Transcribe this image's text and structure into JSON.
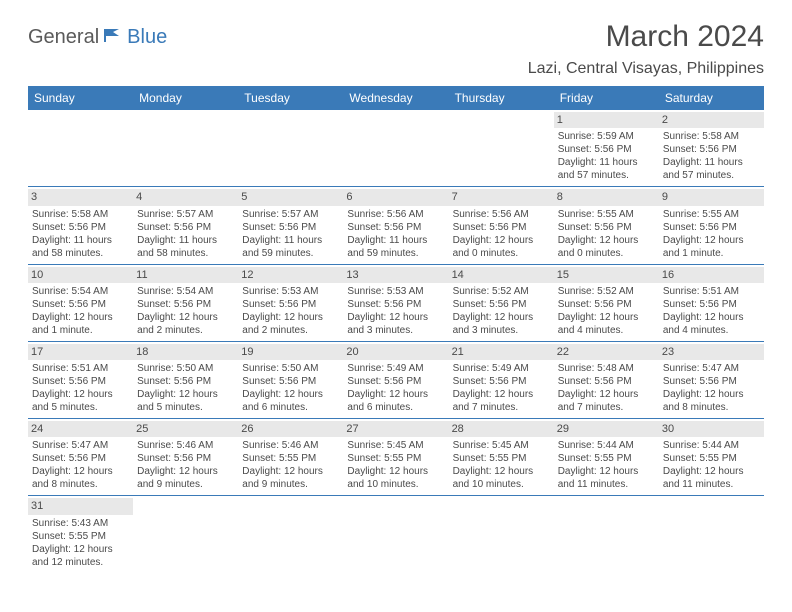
{
  "logo": {
    "part1": "General",
    "part2": "Blue"
  },
  "title": "March 2024",
  "location": "Lazi, Central Visayas, Philippines",
  "colors": {
    "header_bg": "#3a7ab8",
    "daynum_bg": "#e8e8e8",
    "text": "#4a4a4a",
    "border": "#3a7ab8"
  },
  "day_headers": [
    "Sunday",
    "Monday",
    "Tuesday",
    "Wednesday",
    "Thursday",
    "Friday",
    "Saturday"
  ],
  "weeks": [
    [
      null,
      null,
      null,
      null,
      null,
      {
        "n": "1",
        "sr": "Sunrise: 5:59 AM",
        "ss": "Sunset: 5:56 PM",
        "d1": "Daylight: 11 hours",
        "d2": "and 57 minutes."
      },
      {
        "n": "2",
        "sr": "Sunrise: 5:58 AM",
        "ss": "Sunset: 5:56 PM",
        "d1": "Daylight: 11 hours",
        "d2": "and 57 minutes."
      }
    ],
    [
      {
        "n": "3",
        "sr": "Sunrise: 5:58 AM",
        "ss": "Sunset: 5:56 PM",
        "d1": "Daylight: 11 hours",
        "d2": "and 58 minutes."
      },
      {
        "n": "4",
        "sr": "Sunrise: 5:57 AM",
        "ss": "Sunset: 5:56 PM",
        "d1": "Daylight: 11 hours",
        "d2": "and 58 minutes."
      },
      {
        "n": "5",
        "sr": "Sunrise: 5:57 AM",
        "ss": "Sunset: 5:56 PM",
        "d1": "Daylight: 11 hours",
        "d2": "and 59 minutes."
      },
      {
        "n": "6",
        "sr": "Sunrise: 5:56 AM",
        "ss": "Sunset: 5:56 PM",
        "d1": "Daylight: 11 hours",
        "d2": "and 59 minutes."
      },
      {
        "n": "7",
        "sr": "Sunrise: 5:56 AM",
        "ss": "Sunset: 5:56 PM",
        "d1": "Daylight: 12 hours",
        "d2": "and 0 minutes."
      },
      {
        "n": "8",
        "sr": "Sunrise: 5:55 AM",
        "ss": "Sunset: 5:56 PM",
        "d1": "Daylight: 12 hours",
        "d2": "and 0 minutes."
      },
      {
        "n": "9",
        "sr": "Sunrise: 5:55 AM",
        "ss": "Sunset: 5:56 PM",
        "d1": "Daylight: 12 hours",
        "d2": "and 1 minute."
      }
    ],
    [
      {
        "n": "10",
        "sr": "Sunrise: 5:54 AM",
        "ss": "Sunset: 5:56 PM",
        "d1": "Daylight: 12 hours",
        "d2": "and 1 minute."
      },
      {
        "n": "11",
        "sr": "Sunrise: 5:54 AM",
        "ss": "Sunset: 5:56 PM",
        "d1": "Daylight: 12 hours",
        "d2": "and 2 minutes."
      },
      {
        "n": "12",
        "sr": "Sunrise: 5:53 AM",
        "ss": "Sunset: 5:56 PM",
        "d1": "Daylight: 12 hours",
        "d2": "and 2 minutes."
      },
      {
        "n": "13",
        "sr": "Sunrise: 5:53 AM",
        "ss": "Sunset: 5:56 PM",
        "d1": "Daylight: 12 hours",
        "d2": "and 3 minutes."
      },
      {
        "n": "14",
        "sr": "Sunrise: 5:52 AM",
        "ss": "Sunset: 5:56 PM",
        "d1": "Daylight: 12 hours",
        "d2": "and 3 minutes."
      },
      {
        "n": "15",
        "sr": "Sunrise: 5:52 AM",
        "ss": "Sunset: 5:56 PM",
        "d1": "Daylight: 12 hours",
        "d2": "and 4 minutes."
      },
      {
        "n": "16",
        "sr": "Sunrise: 5:51 AM",
        "ss": "Sunset: 5:56 PM",
        "d1": "Daylight: 12 hours",
        "d2": "and 4 minutes."
      }
    ],
    [
      {
        "n": "17",
        "sr": "Sunrise: 5:51 AM",
        "ss": "Sunset: 5:56 PM",
        "d1": "Daylight: 12 hours",
        "d2": "and 5 minutes."
      },
      {
        "n": "18",
        "sr": "Sunrise: 5:50 AM",
        "ss": "Sunset: 5:56 PM",
        "d1": "Daylight: 12 hours",
        "d2": "and 5 minutes."
      },
      {
        "n": "19",
        "sr": "Sunrise: 5:50 AM",
        "ss": "Sunset: 5:56 PM",
        "d1": "Daylight: 12 hours",
        "d2": "and 6 minutes."
      },
      {
        "n": "20",
        "sr": "Sunrise: 5:49 AM",
        "ss": "Sunset: 5:56 PM",
        "d1": "Daylight: 12 hours",
        "d2": "and 6 minutes."
      },
      {
        "n": "21",
        "sr": "Sunrise: 5:49 AM",
        "ss": "Sunset: 5:56 PM",
        "d1": "Daylight: 12 hours",
        "d2": "and 7 minutes."
      },
      {
        "n": "22",
        "sr": "Sunrise: 5:48 AM",
        "ss": "Sunset: 5:56 PM",
        "d1": "Daylight: 12 hours",
        "d2": "and 7 minutes."
      },
      {
        "n": "23",
        "sr": "Sunrise: 5:47 AM",
        "ss": "Sunset: 5:56 PM",
        "d1": "Daylight: 12 hours",
        "d2": "and 8 minutes."
      }
    ],
    [
      {
        "n": "24",
        "sr": "Sunrise: 5:47 AM",
        "ss": "Sunset: 5:56 PM",
        "d1": "Daylight: 12 hours",
        "d2": "and 8 minutes."
      },
      {
        "n": "25",
        "sr": "Sunrise: 5:46 AM",
        "ss": "Sunset: 5:56 PM",
        "d1": "Daylight: 12 hours",
        "d2": "and 9 minutes."
      },
      {
        "n": "26",
        "sr": "Sunrise: 5:46 AM",
        "ss": "Sunset: 5:55 PM",
        "d1": "Daylight: 12 hours",
        "d2": "and 9 minutes."
      },
      {
        "n": "27",
        "sr": "Sunrise: 5:45 AM",
        "ss": "Sunset: 5:55 PM",
        "d1": "Daylight: 12 hours",
        "d2": "and 10 minutes."
      },
      {
        "n": "28",
        "sr": "Sunrise: 5:45 AM",
        "ss": "Sunset: 5:55 PM",
        "d1": "Daylight: 12 hours",
        "d2": "and 10 minutes."
      },
      {
        "n": "29",
        "sr": "Sunrise: 5:44 AM",
        "ss": "Sunset: 5:55 PM",
        "d1": "Daylight: 12 hours",
        "d2": "and 11 minutes."
      },
      {
        "n": "30",
        "sr": "Sunrise: 5:44 AM",
        "ss": "Sunset: 5:55 PM",
        "d1": "Daylight: 12 hours",
        "d2": "and 11 minutes."
      }
    ],
    [
      {
        "n": "31",
        "sr": "Sunrise: 5:43 AM",
        "ss": "Sunset: 5:55 PM",
        "d1": "Daylight: 12 hours",
        "d2": "and 12 minutes."
      },
      null,
      null,
      null,
      null,
      null,
      null
    ]
  ]
}
